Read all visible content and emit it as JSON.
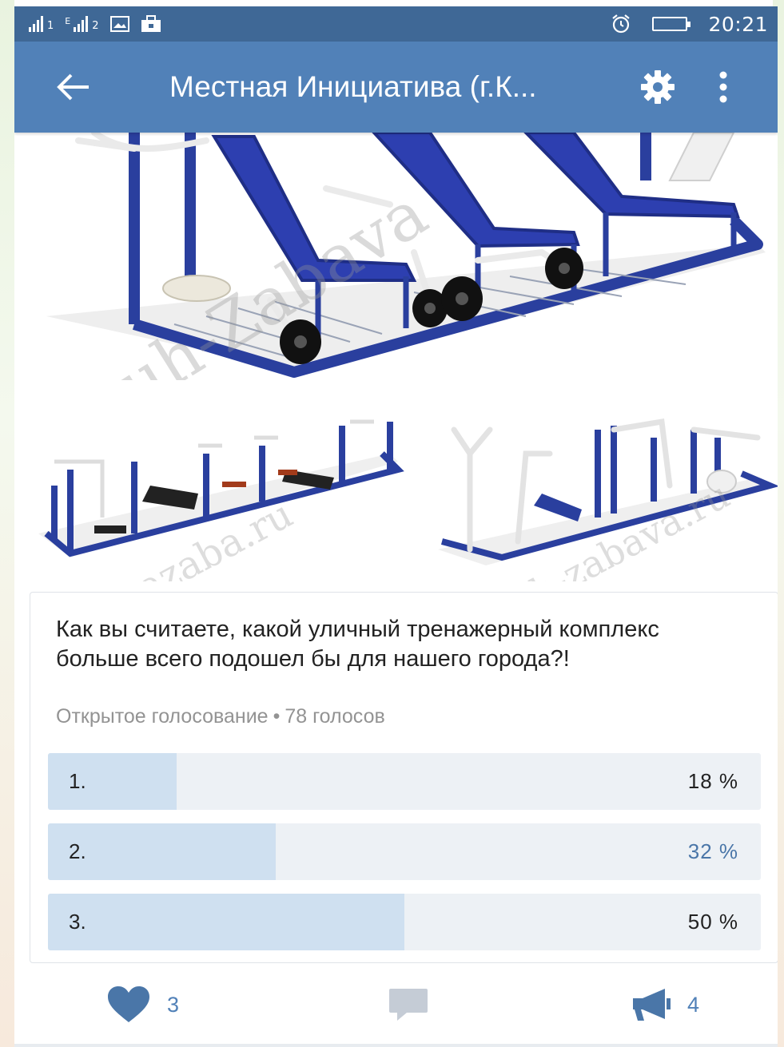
{
  "status_bar": {
    "sim1": "1",
    "sim2": "2",
    "network": "E",
    "time": "20:21"
  },
  "app_bar": {
    "title": "Местная Инициатива (г.К...",
    "back_icon": "arrow-left-icon",
    "settings_icon": "gear-icon",
    "more_icon": "more-vertical-icon"
  },
  "watermarks": {
    "main": "uh-Zabava",
    "small_1": "ubazaba.ru",
    "small_2": "uh-zabava.ru"
  },
  "poll": {
    "question": "Как вы считаете, какой уличный тренажерный комплекс больше всего подошел бы для нашего города?!",
    "type_label": "Открытое голосование",
    "separator": "•",
    "votes_label": "78 голосов",
    "options": [
      {
        "label": "1.",
        "percent_text": "18 %",
        "percent": 18,
        "selected": false
      },
      {
        "label": "2.",
        "percent_text": "32 %",
        "percent": 32,
        "selected": true
      },
      {
        "label": "3.",
        "percent_text": "50 %",
        "percent": 50,
        "selected": false
      }
    ]
  },
  "actions": {
    "likes": "3",
    "shares": "4"
  },
  "colors": {
    "status_bar": "#3f6896",
    "app_bar": "#5181b8",
    "accent": "#4a76a8",
    "poll_fill": "#cfe0f0",
    "poll_track": "#edf1f5",
    "equipment_blue": "#2a3f9e"
  }
}
